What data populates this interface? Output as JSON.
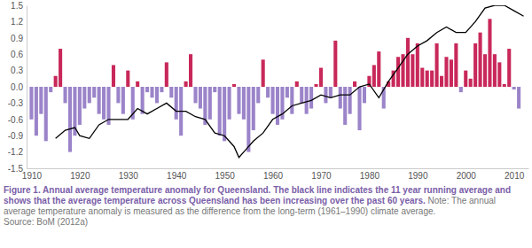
{
  "chart_data": {
    "type": "bar",
    "caption": "Figure 1. Annual average temperature anomaly for Queensland. The black line indicates the 11 year running average and shows that the average temperature across Queensland has been increasing over the past 60 years.",
    "note": "Note: The annual average temperature anomaly is measured as the difference from the long-term (1961–1990) climate average.",
    "source": "Source: BoM (2012a)",
    "xlim": [
      1909,
      2013
    ],
    "xticks": [
      1910,
      1920,
      1930,
      1940,
      1950,
      1960,
      1970,
      1980,
      1990,
      2000,
      2010
    ],
    "ylim": [
      -1.5,
      1.5
    ],
    "yticks": [
      -1.5,
      -1.2,
      -0.9,
      -0.6,
      -0.3,
      {
        "value": 0,
        "label": "0.0"
      },
      0.3,
      0.6,
      0.9,
      1.2,
      1.5
    ],
    "grid": false,
    "series": [
      {
        "type": "bar",
        "x": [
          1910,
          1911,
          1912,
          1913,
          1914,
          1915,
          1916,
          1917,
          1918,
          1919,
          1920,
          1921,
          1922,
          1923,
          1924,
          1925,
          1926,
          1927,
          1928,
          1929,
          1930,
          1931,
          1932,
          1933,
          1934,
          1935,
          1936,
          1937,
          1938,
          1939,
          1940,
          1941,
          1942,
          1943,
          1944,
          1945,
          1946,
          1947,
          1948,
          1949,
          1950,
          1951,
          1952,
          1953,
          1954,
          1955,
          1956,
          1957,
          1958,
          1959,
          1960,
          1961,
          1962,
          1963,
          1964,
          1965,
          1966,
          1967,
          1968,
          1969,
          1970,
          1971,
          1972,
          1973,
          1974,
          1975,
          1976,
          1977,
          1978,
          1979,
          1980,
          1981,
          1982,
          1983,
          1984,
          1985,
          1986,
          1987,
          1988,
          1989,
          1990,
          1991,
          1992,
          1993,
          1994,
          1995,
          1996,
          1997,
          1998,
          1999,
          2000,
          2001,
          2002,
          2003,
          2004,
          2005,
          2006,
          2007,
          2008,
          2009,
          2010,
          2011
        ],
        "values": [
          -0.6,
          -0.9,
          -0.5,
          -1.0,
          -0.1,
          0.2,
          0.7,
          -0.3,
          -1.2,
          -0.9,
          -0.7,
          -0.4,
          -0.3,
          -0.2,
          -0.5,
          -0.6,
          -0.7,
          0.4,
          -0.3,
          -0.5,
          0.3,
          -0.6,
          0.1,
          -0.5,
          -0.1,
          -0.2,
          -0.3,
          -0.1,
          0.45,
          -0.2,
          -0.6,
          -0.9,
          0.1,
          0.6,
          -0.3,
          -0.4,
          -0.7,
          -0.6,
          -0.1,
          -0.9,
          -1.0,
          -0.6,
          0.05,
          -0.5,
          -0.6,
          -1.2,
          -0.8,
          -0.3,
          0.5,
          -0.2,
          -0.5,
          -0.7,
          -0.6,
          -0.2,
          -0.5,
          0.1,
          -0.3,
          -0.5,
          -0.4,
          0.05,
          0.35,
          -0.3,
          -0.2,
          0.85,
          -0.4,
          -0.7,
          -0.5,
          0.1,
          -0.8,
          -0.3,
          0.2,
          0.4,
          0.65,
          -0.4,
          0.1,
          0.3,
          0.55,
          0.6,
          0.9,
          0.6,
          0.8,
          0.35,
          0.3,
          0.3,
          0.8,
          0.2,
          0.55,
          0.5,
          0.8,
          -0.1,
          0.3,
          0.15,
          0.8,
          1.0,
          0.6,
          1.25,
          0.6,
          0.45,
          0.05,
          0.7,
          -0.05,
          -0.4
        ],
        "colors": [
          "#9b84c9",
          "#9b84c9",
          "#9b84c9",
          "#9b84c9",
          "#9b84c9",
          "#c8285a",
          "#c8285a",
          "#9b84c9",
          "#9b84c9",
          "#9b84c9",
          "#9b84c9",
          "#9b84c9",
          "#9b84c9",
          "#9b84c9",
          "#9b84c9",
          "#9b84c9",
          "#9b84c9",
          "#c8285a",
          "#9b84c9",
          "#9b84c9",
          "#c8285a",
          "#9b84c9",
          "#c8285a",
          "#9b84c9",
          "#9b84c9",
          "#9b84c9",
          "#9b84c9",
          "#9b84c9",
          "#c8285a",
          "#9b84c9",
          "#9b84c9",
          "#9b84c9",
          "#c8285a",
          "#c8285a",
          "#9b84c9",
          "#9b84c9",
          "#9b84c9",
          "#9b84c9",
          "#9b84c9",
          "#9b84c9",
          "#9b84c9",
          "#9b84c9",
          "#c8285a",
          "#9b84c9",
          "#9b84c9",
          "#9b84c9",
          "#9b84c9",
          "#9b84c9",
          "#c8285a",
          "#9b84c9",
          "#9b84c9",
          "#9b84c9",
          "#9b84c9",
          "#9b84c9",
          "#9b84c9",
          "#c8285a",
          "#9b84c9",
          "#9b84c9",
          "#9b84c9",
          "#c8285a",
          "#c8285a",
          "#9b84c9",
          "#9b84c9",
          "#c8285a",
          "#9b84c9",
          "#9b84c9",
          "#9b84c9",
          "#c8285a",
          "#9b84c9",
          "#9b84c9",
          "#c8285a",
          "#c8285a",
          "#c8285a",
          "#9b84c9",
          "#c8285a",
          "#c8285a",
          "#c8285a",
          "#c8285a",
          "#c8285a",
          "#c8285a",
          "#c8285a",
          "#c8285a",
          "#c8285a",
          "#c8285a",
          "#c8285a",
          "#c8285a",
          "#c8285a",
          "#c8285a",
          "#c8285a",
          "#9b84c9",
          "#c8285a",
          "#c8285a",
          "#c8285a",
          "#c8285a",
          "#c8285a",
          "#c8285a",
          "#c8285a",
          "#c8285a",
          "#c8285a",
          "#c8285a",
          "#9b84c9",
          "#9b84c9"
        ]
      },
      {
        "type": "line",
        "color": "#000000",
        "x": [
          1915,
          1917,
          1919,
          1920,
          1922,
          1924,
          1926,
          1928,
          1930,
          1932,
          1934,
          1936,
          1938,
          1940,
          1942,
          1944,
          1946,
          1948,
          1950,
          1952,
          1953,
          1954,
          1956,
          1958,
          1960,
          1962,
          1964,
          1966,
          1968,
          1970,
          1972,
          1974,
          1976,
          1978,
          1980,
          1982,
          1984,
          1986,
          1988,
          1990,
          1992,
          1994,
          1996,
          1998,
          2000,
          2002,
          2004,
          2006,
          2008,
          2010,
          2012
        ],
        "values": [
          -0.95,
          -0.8,
          -0.75,
          -0.9,
          -0.95,
          -0.7,
          -0.6,
          -0.6,
          -0.6,
          -0.4,
          -0.5,
          -0.4,
          -0.3,
          -0.45,
          -0.45,
          -0.55,
          -0.6,
          -0.85,
          -0.9,
          -1.1,
          -1.3,
          -1.2,
          -1.0,
          -0.85,
          -0.6,
          -0.5,
          -0.35,
          -0.3,
          -0.25,
          -0.15,
          -0.2,
          -0.15,
          -0.15,
          0.0,
          0.05,
          -0.2,
          0.1,
          0.35,
          0.6,
          0.75,
          0.85,
          1.0,
          1.1,
          1.0,
          1.0,
          1.2,
          1.45,
          1.5,
          1.5,
          1.4,
          1.3
        ]
      }
    ]
  }
}
